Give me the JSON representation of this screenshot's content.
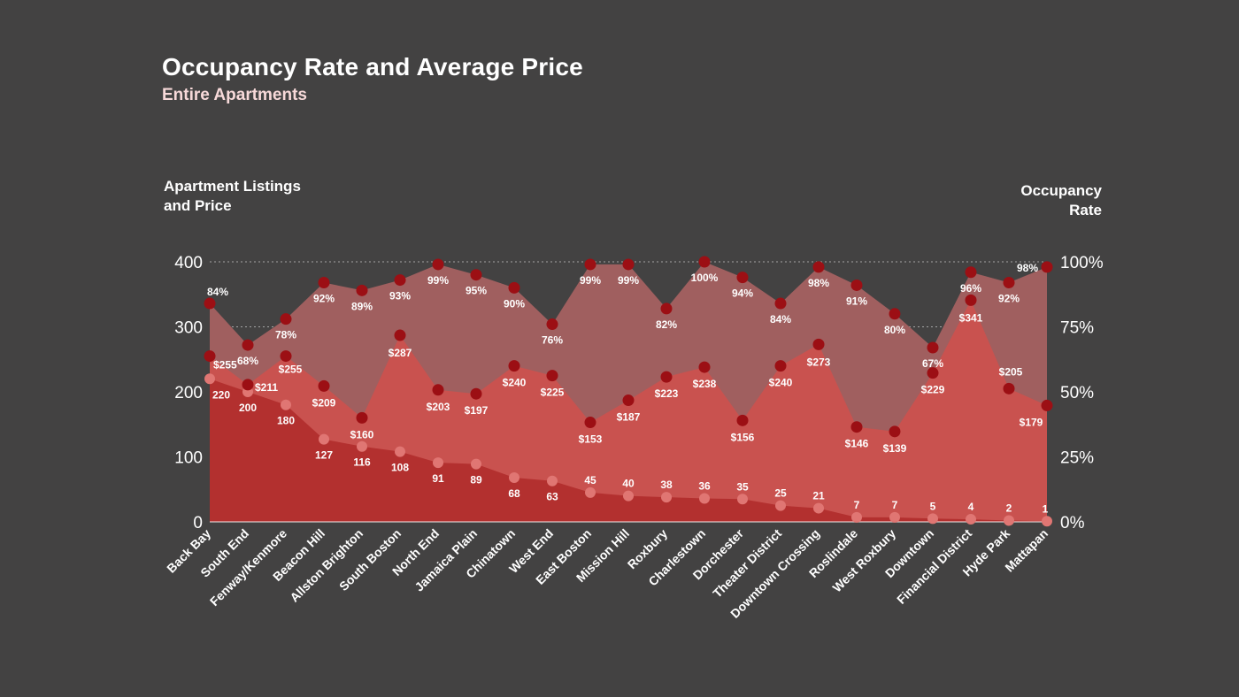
{
  "title": "Occupancy Rate and Average Price",
  "subtitle": "Entire Apartments",
  "ylabel_left_line1": "Apartment Listings",
  "ylabel_left_line2": "and Price",
  "ylabel_right_line1": "Occupancy",
  "ylabel_right_line2": "Rate",
  "colors": {
    "background": "#434242",
    "occupancy_area": "#a05f5f",
    "price_area": "#c9524f",
    "listings_area": "#b3302f",
    "marker": "#9c0f14",
    "listings_marker": "#e07673"
  },
  "chart_data": {
    "type": "area",
    "categories": [
      "Back Bay",
      "South End",
      "Fenway/Kenmore",
      "Beacon Hill",
      "Allston Brighton",
      "South Boston",
      "North End",
      "Jamaica Plain",
      "Chinatown",
      "West End",
      "East Boston",
      "Mission Hill",
      "Roxbury",
      "Charlestown",
      "Dorchester",
      "Theater District",
      "Downtown Crossing",
      "Roslindale",
      "West Roxbury",
      "Downtown",
      "Financial District",
      "Hyde Park",
      "Mattapan"
    ],
    "series": [
      {
        "name": "Occupancy Rate",
        "axis": "right",
        "unit": "%",
        "values": [
          84,
          68,
          78,
          92,
          89,
          93,
          99,
          95,
          90,
          76,
          99,
          99,
          82,
          100,
          94,
          84,
          98,
          91,
          80,
          67,
          96,
          92,
          98
        ],
        "labels": [
          "84%",
          "68%",
          "78%",
          "92%",
          "89%",
          "93%",
          "99%",
          "95%",
          "90%",
          "76%",
          "99%",
          "99%",
          "82%",
          "100%",
          "94%",
          "84%",
          "98%",
          "91%",
          "80%",
          "67%",
          "96%",
          "92%",
          "98%"
        ]
      },
      {
        "name": "Average Price",
        "axis": "left",
        "unit": "$",
        "values": [
          255,
          211,
          255,
          209,
          160,
          287,
          203,
          197,
          240,
          225,
          153,
          187,
          223,
          238,
          156,
          240,
          273,
          146,
          139,
          229,
          341,
          205,
          179
        ],
        "labels": [
          "$255",
          "$211",
          "$255",
          "$209",
          "$160",
          "$287",
          "$203",
          "$197",
          "$240",
          "$225",
          "$153",
          "$187",
          "$223",
          "$238",
          "$156",
          "$240",
          "$273",
          "$146",
          "$139",
          "$229",
          "$341",
          "$205",
          "$179"
        ]
      },
      {
        "name": "Apartment Listings",
        "axis": "left",
        "values": [
          220,
          200,
          180,
          127,
          116,
          108,
          91,
          89,
          68,
          63,
          45,
          40,
          38,
          36,
          35,
          25,
          21,
          7,
          7,
          5,
          4,
          2,
          1
        ],
        "labels": [
          "220",
          "200",
          "180",
          "127",
          "116",
          "108",
          "91",
          "89",
          "68",
          "63",
          "45",
          "40",
          "38",
          "36",
          "35",
          "25",
          "21",
          "7",
          "7",
          "5",
          "4",
          "2",
          "1"
        ]
      }
    ],
    "ylim_left": [
      0,
      400
    ],
    "yticks_left": [
      "0",
      "100",
      "200",
      "300",
      "400"
    ],
    "ylim_right": [
      0,
      100
    ],
    "yticks_right": [
      "0%",
      "25%",
      "50%",
      "75%",
      "100%"
    ],
    "grid": "horizontal dotted"
  }
}
